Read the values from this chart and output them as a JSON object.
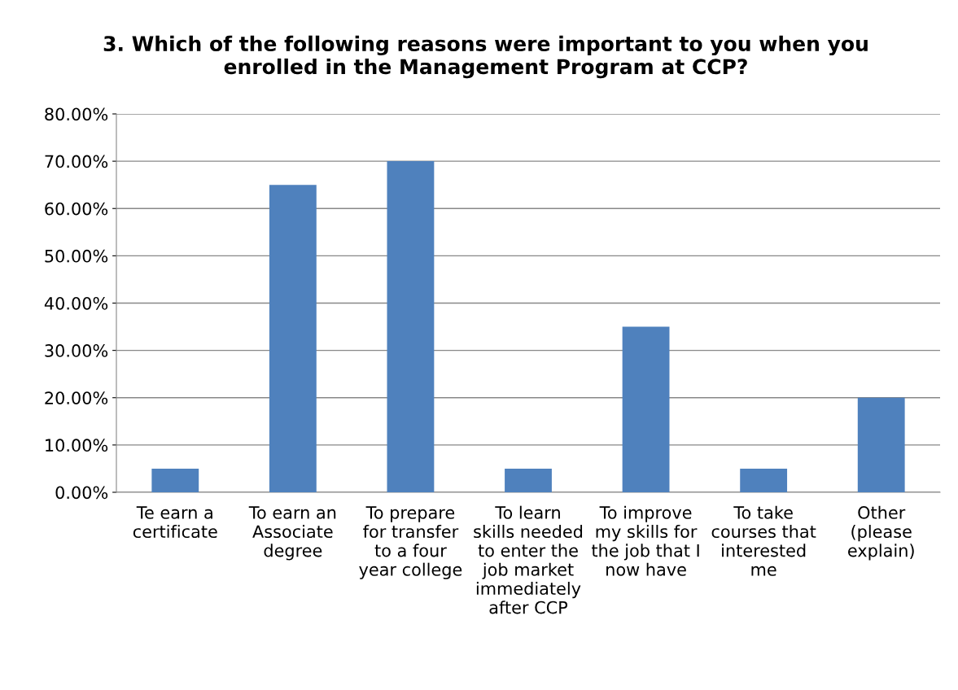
{
  "chart_data": {
    "type": "bar",
    "title": "3. Which of the following reasons were important to you when you\nenrolled in the Management Program at CCP?",
    "categories": [
      "Te earn a\ncertificate",
      "To earn an\nAssociate\ndegree",
      "To prepare\nfor transfer\nto a four\nyear college",
      "To learn\nskills needed\nto enter the\njob market\nimmediately\nafter CCP",
      "To improve\nmy skills for\nthe job that I\nnow have",
      "To take\ncourses that\ninterested\nme",
      "Other\n(please\nexplain)"
    ],
    "values": [
      5,
      65,
      70,
      5,
      35,
      5,
      20
    ],
    "color": "#4f81bd",
    "ylim": [
      0,
      80
    ],
    "yticks": [
      {
        "value": 0,
        "label": "0.00%"
      },
      {
        "value": 10,
        "label": "10.00%"
      },
      {
        "value": 20,
        "label": "20.00%"
      },
      {
        "value": 30,
        "label": "30.00%"
      },
      {
        "value": 40,
        "label": "40.00%"
      },
      {
        "value": 50,
        "label": "50.00%"
      },
      {
        "value": 60,
        "label": "60.00%"
      },
      {
        "value": 70,
        "label": "70.00%"
      },
      {
        "value": 80,
        "label": "80.00%"
      }
    ],
    "grid": "y",
    "legend": false
  }
}
